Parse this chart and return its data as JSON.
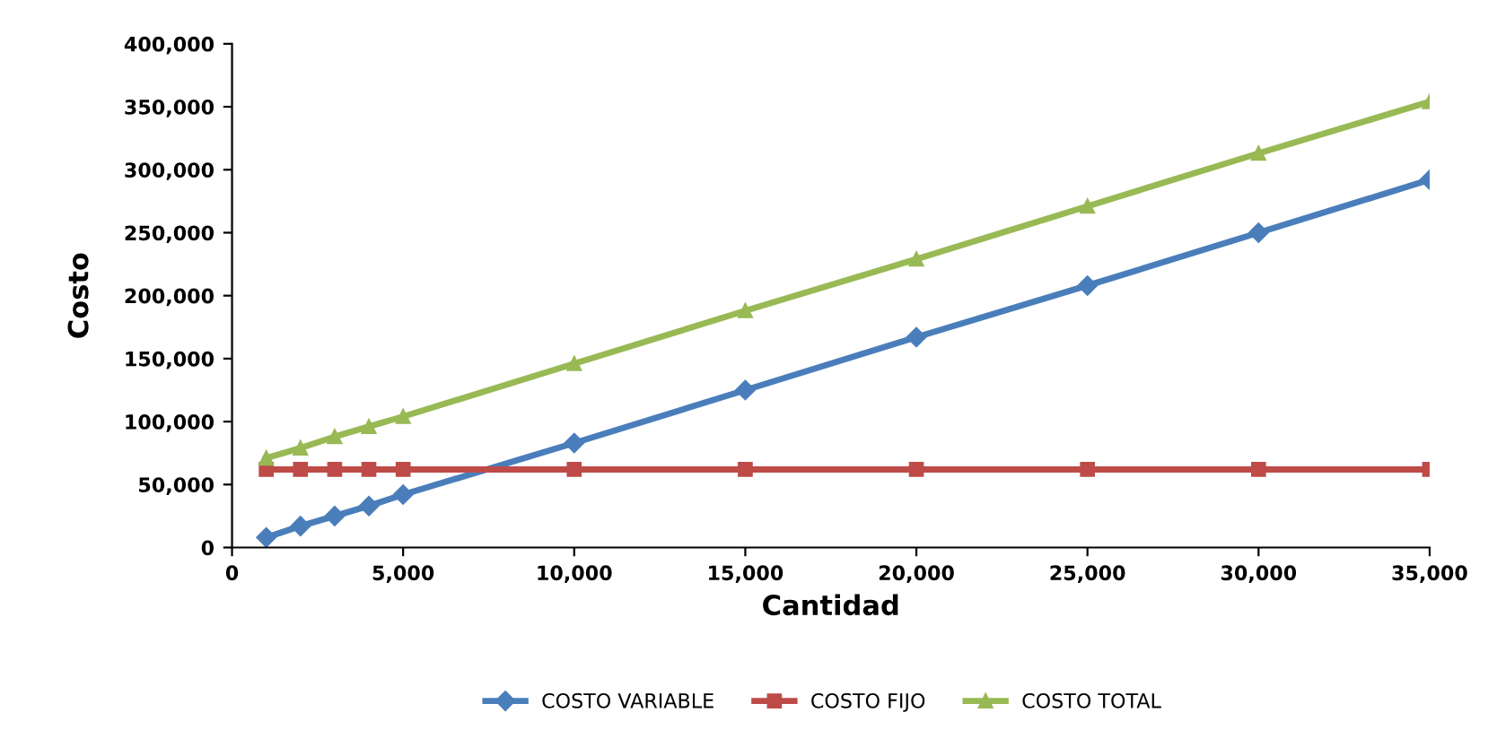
{
  "chart_data": {
    "type": "line",
    "xlabel": "Cantidad",
    "ylabel": "Costo",
    "x": [
      1000,
      2000,
      3000,
      4000,
      5000,
      10000,
      15000,
      20000,
      25000,
      30000,
      35000
    ],
    "series": [
      {
        "name": "COSTO VARIABLE",
        "color": "#4a7ebb",
        "marker": "diamond",
        "values": [
          8000,
          17000,
          25000,
          33000,
          42000,
          83000,
          125000,
          167000,
          208000,
          250000,
          292000
        ]
      },
      {
        "name": "COSTO FIJO",
        "color": "#be4b48",
        "marker": "square",
        "values": [
          62000,
          62000,
          62000,
          62000,
          62000,
          62000,
          62000,
          62000,
          62000,
          62000,
          62000
        ]
      },
      {
        "name": "COSTO TOTAL",
        "color": "#98b954",
        "marker": "triangle",
        "values": [
          71000,
          79000,
          88000,
          96000,
          104000,
          146000,
          188000,
          229000,
          271000,
          313000,
          354000
        ]
      }
    ],
    "xlim": [
      0,
      35000
    ],
    "xticks": [
      {
        "value": 0,
        "label": "0"
      },
      {
        "value": 5000,
        "label": "5,000"
      },
      {
        "value": 10000,
        "label": "10,000"
      },
      {
        "value": 15000,
        "label": "15,000"
      },
      {
        "value": 20000,
        "label": "20,000"
      },
      {
        "value": 25000,
        "label": "25,000"
      },
      {
        "value": 30000,
        "label": "30,000"
      },
      {
        "value": 35000,
        "label": "35,000"
      }
    ],
    "ylim": [
      0,
      400000
    ],
    "yticks": [
      {
        "value": 0,
        "label": "0"
      },
      {
        "value": 50000,
        "label": "50,000"
      },
      {
        "value": 100000,
        "label": "100,000"
      },
      {
        "value": 150000,
        "label": "150,000"
      },
      {
        "value": 200000,
        "label": "200,000"
      },
      {
        "value": 250000,
        "label": "250,000"
      },
      {
        "value": 300000,
        "label": "300,000"
      },
      {
        "value": 350000,
        "label": "350,000"
      },
      {
        "value": 400000,
        "label": "400,000"
      }
    ],
    "grid": false,
    "legend": "bottom",
    "line_style": "solid"
  }
}
